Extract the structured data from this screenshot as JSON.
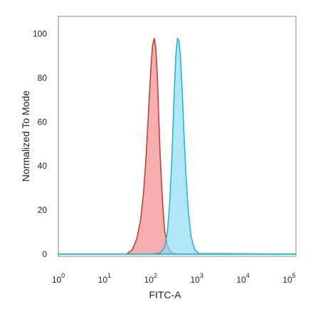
{
  "chart_data": {
    "type": "area",
    "xlabel": "FITC-A",
    "ylabel": "Normalized To Mode",
    "x_scale": "log",
    "xlim": [
      1,
      140000
    ],
    "ylim": [
      -1,
      108
    ],
    "grid": false,
    "x_ticks": [
      {
        "value": 1,
        "base": "10",
        "exp": "0"
      },
      {
        "value": 10,
        "base": "10",
        "exp": "1"
      },
      {
        "value": 100,
        "base": "10",
        "exp": "2"
      },
      {
        "value": 1000,
        "base": "10",
        "exp": "3"
      },
      {
        "value": 10000,
        "base": "10",
        "exp": "4"
      },
      {
        "value": 100000,
        "base": "10",
        "exp": "5"
      }
    ],
    "y_ticks": [
      0,
      20,
      40,
      60,
      80,
      100
    ],
    "series": [
      {
        "color": "#f28b8b",
        "stroke": "#c0392b",
        "x": [
          1,
          30,
          40,
          50,
          60,
          70,
          80,
          90,
          100,
          110,
          120,
          130,
          140,
          150,
          160,
          180,
          200,
          230,
          260,
          300,
          400,
          1000,
          140000
        ],
        "y": [
          0,
          0,
          2,
          7,
          15,
          28,
          45,
          65,
          83,
          95,
          98,
          93,
          80,
          62,
          45,
          24,
          11,
          4,
          1.5,
          0.5,
          0,
          0,
          0
        ]
      },
      {
        "color": "#8fdcf2",
        "stroke": "#18b4d6",
        "x": [
          1,
          100,
          160,
          200,
          230,
          260,
          290,
          320,
          350,
          380,
          410,
          440,
          480,
          520,
          580,
          650,
          750,
          900,
          1100,
          140000
        ],
        "y": [
          0,
          0,
          0.5,
          3,
          10,
          24,
          45,
          70,
          90,
          98,
          97,
          90,
          75,
          57,
          36,
          20,
          8,
          2,
          0.3,
          0
        ]
      }
    ]
  }
}
